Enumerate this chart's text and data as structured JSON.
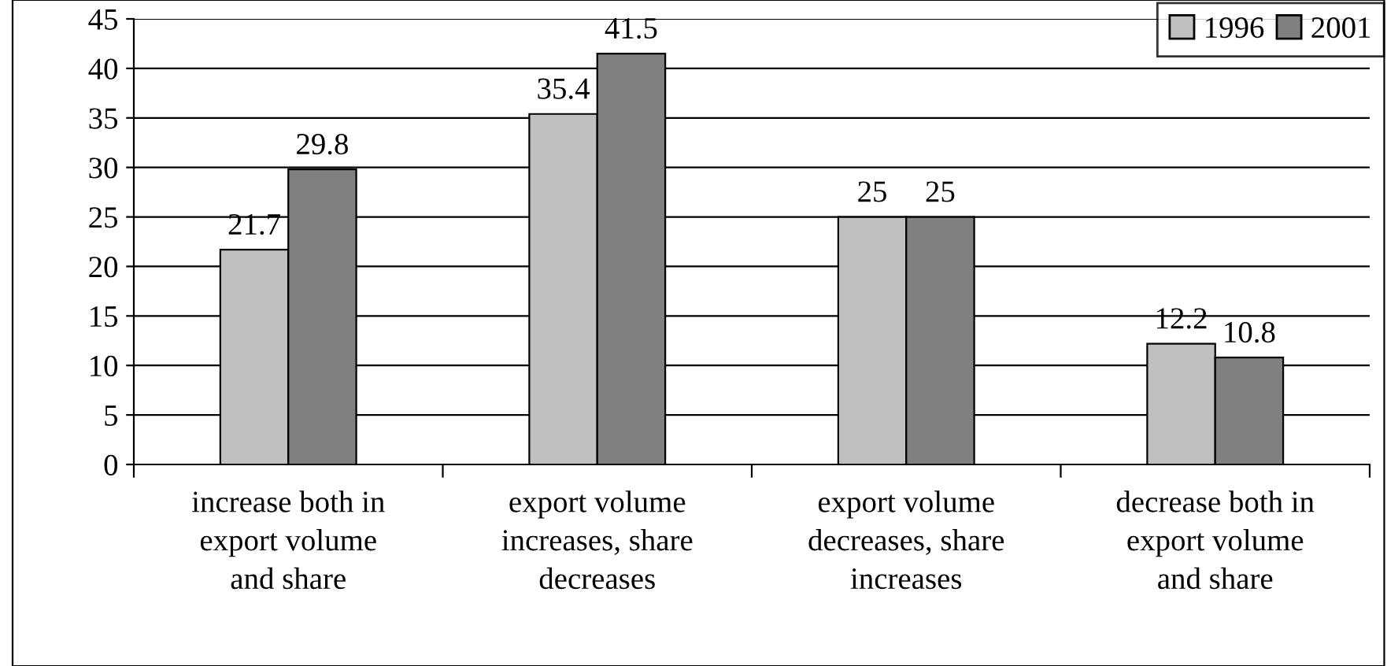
{
  "chart_data": {
    "type": "bar",
    "categories": [
      "increase both in\nexport volume\nand share",
      "export volume\nincreases, share\ndecreases",
      "export volume\ndecreases, share\nincreases",
      "decrease both in\nexport volume\nand share"
    ],
    "series": [
      {
        "name": "1996",
        "color": "#c0c0c0",
        "values": [
          21.7,
          35.4,
          25,
          12.2
        ]
      },
      {
        "name": "2001",
        "color": "#808080",
        "values": [
          29.8,
          41.5,
          25,
          10.8
        ]
      }
    ],
    "ylim": [
      0,
      45
    ],
    "yticks": [
      0,
      5,
      10,
      15,
      20,
      25,
      30,
      35,
      40,
      45
    ],
    "grid": "y",
    "legend": "top right",
    "data_labels": true
  }
}
